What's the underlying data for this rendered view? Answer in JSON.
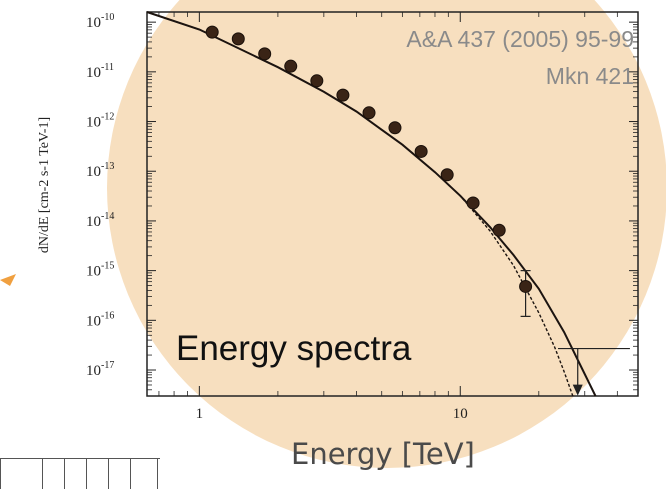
{
  "chart_data": {
    "type": "scatter",
    "title": "",
    "annotations": {
      "reference": "A&A 437 (2005) 95-99",
      "source": "Mkn 421",
      "overlay": "Energy spectra"
    },
    "xlabel": "Energy [TeV]",
    "ylabel": "dN/dE [cm-2 s-1 TeV-1]",
    "x_scale": "log",
    "y_scale": "log",
    "xlim": [
      0.63,
      48
    ],
    "ylim": [
      3e-18,
      1.6e-10
    ],
    "x_ticks": [
      {
        "value": 1,
        "label": "1"
      },
      {
        "value": 10,
        "label": "10"
      }
    ],
    "y_ticks": [
      {
        "value": 1e-10,
        "base": "10",
        "exp": "-10"
      },
      {
        "value": 1e-11,
        "base": "10",
        "exp": "-11"
      },
      {
        "value": 1e-12,
        "base": "10",
        "exp": "-12"
      },
      {
        "value": 1e-13,
        "base": "10",
        "exp": "-13"
      },
      {
        "value": 1e-14,
        "base": "10",
        "exp": "-14"
      },
      {
        "value": 1e-15,
        "base": "10",
        "exp": "-15"
      },
      {
        "value": 1e-16,
        "base": "10",
        "exp": "-16"
      },
      {
        "value": 1e-17,
        "base": "10",
        "exp": "-17"
      }
    ],
    "grid": false,
    "series": [
      {
        "name": "",
        "marker": "circle",
        "color": "#3a2416",
        "points": [
          {
            "x": 1.12,
            "y": 6.3e-11
          },
          {
            "x": 1.41,
            "y": 4.6e-11
          },
          {
            "x": 1.78,
            "y": 2.3e-11
          },
          {
            "x": 2.24,
            "y": 1.3e-11
          },
          {
            "x": 2.82,
            "y": 6.6e-12
          },
          {
            "x": 3.55,
            "y": 3.4e-12
          },
          {
            "x": 4.47,
            "y": 1.5e-12
          },
          {
            "x": 5.62,
            "y": 7.5e-13
          },
          {
            "x": 7.08,
            "y": 2.5e-13
          },
          {
            "x": 8.91,
            "y": 8.5e-14
          },
          {
            "x": 11.2,
            "y": 2.3e-14
          },
          {
            "x": 14.1,
            "y": 6.5e-15
          },
          {
            "x": 17.8,
            "y": 4.8e-16,
            "yerr_low": 1.2e-16,
            "yerr_high": 1e-15
          }
        ],
        "upper_limit": {
          "x": 28.2,
          "y": 2.7e-17,
          "x_low": 23.7,
          "x_high": 44.7
        }
      }
    ],
    "fits": [
      {
        "style": "solid",
        "x": [
          0.63,
          1,
          2,
          3,
          4,
          6,
          8,
          10,
          13,
          16,
          20,
          25,
          30,
          33
        ],
        "y": [
          1.6e-10,
          7.1e-11,
          1.24e-11,
          3.96e-12,
          1.59e-12,
          3.42e-13,
          9.58e-14,
          3.21e-14,
          7.55e-15,
          2.06e-15,
          4.3e-16,
          5.8e-17,
          8.3e-18,
          3e-18
        ]
      },
      {
        "style": "dashed",
        "x": [
          0.63,
          1,
          2,
          3,
          4,
          6,
          8,
          10,
          13,
          16,
          20,
          23,
          25,
          27
        ],
        "y": [
          1.6e-10,
          7.1e-11,
          1.24e-11,
          3.96e-12,
          1.59e-12,
          3.42e-13,
          9.58e-14,
          3.21e-14,
          6.3e-15,
          1.27e-15,
          1.42e-16,
          2.9e-17,
          9.3e-18,
          3e-18
        ]
      }
    ],
    "colors": {
      "background_disc": "#f7dfbf",
      "arrow": "#f0a040",
      "marker": "#3a2416",
      "axis": "#222222",
      "reference_text": "#8a8a8a",
      "xlabel": "#4a4a4a"
    }
  }
}
